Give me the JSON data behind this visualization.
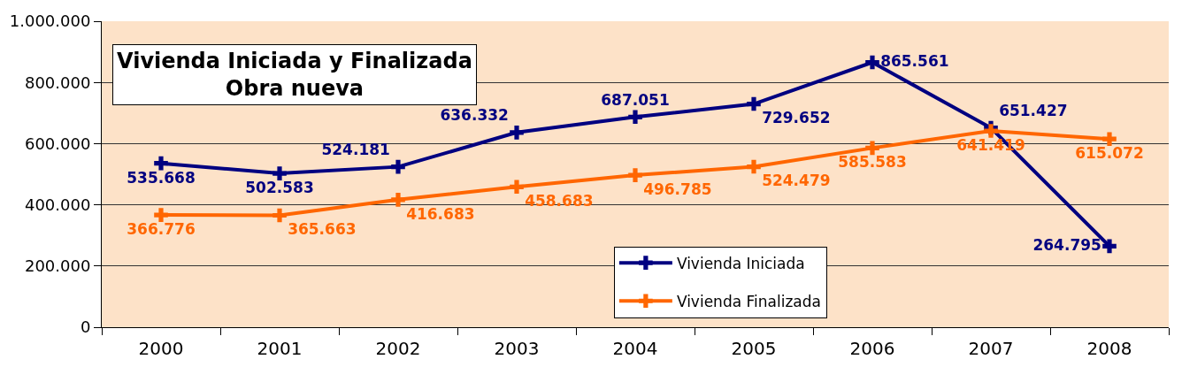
{
  "chart_data": {
    "type": "line",
    "title": "Vivienda Iniciada y Finalizada\nObra nueva",
    "categories": [
      "2000",
      "2001",
      "2002",
      "2003",
      "2004",
      "2005",
      "2006",
      "2007",
      "2008"
    ],
    "series": [
      {
        "name": "Vivienda Iniciada",
        "color": "#000080",
        "values": [
          535668,
          502583,
          524181,
          636332,
          687051,
          729652,
          865561,
          651427,
          264795
        ],
        "value_labels": [
          "535.668",
          "502.583",
          "524.181",
          "636.332",
          "687.051",
          "729.652",
          "865.561",
          "651.427",
          "264.795"
        ]
      },
      {
        "name": "Vivienda Finalizada",
        "color": "#ff6600",
        "values": [
          366776,
          365663,
          416683,
          458683,
          496785,
          524479,
          585583,
          641419,
          615072
        ],
        "value_labels": [
          "366.776",
          "365.663",
          "416.683",
          "458.683",
          "496.785",
          "524.479",
          "585.583",
          "641.419",
          "615.072"
        ]
      }
    ],
    "ylim": [
      0,
      1000000
    ],
    "yticks": [
      0,
      {
        "value": 200000,
        "label": "200.000"
      },
      {
        "value": 400000,
        "label": "400.000"
      },
      {
        "value": 600000,
        "label": "600.000"
      },
      {
        "value": 800000,
        "label": "800.000"
      },
      {
        "value": 1000000,
        "label": "1.000.000"
      }
    ],
    "grid": "y",
    "legend": "bottom",
    "marker": "cross",
    "line_style": "solid"
  }
}
